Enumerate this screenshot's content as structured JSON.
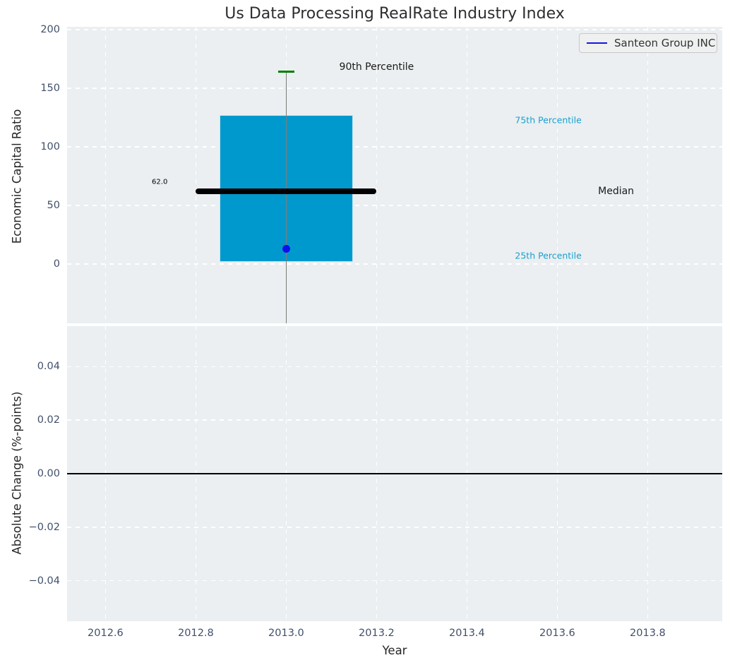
{
  "page": {
    "title": "Us Data Processing RealRate Industry Index"
  },
  "legend": {
    "label": "Santeon Group INC"
  },
  "colors": {
    "figure_bg": "#ffffff",
    "axes_bg": "#ebeff1",
    "grid": "#ffffff",
    "box_fill": "#0099cd",
    "box_edge": "#c9e2ef",
    "median_line": "#000000",
    "whisker": "#7d7d7d",
    "cap_90th": "#007d00",
    "company_point": "#0f0fee",
    "legend_line": "#1414e8",
    "percentile_label": "#189fd0",
    "tick_label": "#42506a",
    "axis_label": "#262626",
    "title": "#2e2e2e",
    "zero_line": "#000000"
  },
  "x_axis": {
    "label": "Year",
    "xlim": [
      2012.515,
      2013.965
    ],
    "xticks": [
      2012.6,
      2012.8,
      2013.0,
      2013.2,
      2013.4,
      2013.6,
      2013.8
    ]
  },
  "chart_data": [
    {
      "type": "boxplot",
      "subplot": "top",
      "title": "Us Data Processing RealRate Industry Index",
      "ylabel": "Economic Capital Ratio",
      "ylim": [
        -50.6,
        202.4
      ],
      "yticks": [
        0,
        50,
        100,
        150,
        200
      ],
      "grid": true,
      "legend_position": "upper right",
      "box": {
        "x": 2013.0,
        "box_width": 0.295,
        "median_width": 0.4,
        "cap_width": 0.036,
        "p90": 164,
        "q3": 127,
        "median": 62,
        "q1": 2,
        "p10_clipped_below_axis": true
      },
      "company_series": {
        "name": "Santeon Group INC",
        "points": [
          {
            "x": 2013.0,
            "y": 13
          }
        ]
      },
      "annotations": [
        {
          "text": "90th Percentile",
          "x": 2013.2,
          "y": 168,
          "color": "#1a1a1a",
          "size": 14
        },
        {
          "text": "62.0",
          "x": 2012.72,
          "y": 70,
          "color": "#000000",
          "size": 10
        },
        {
          "text": "75th Percentile",
          "x": 2013.58,
          "y": 123,
          "color": "#189fd0",
          "size": 12.5
        },
        {
          "text": "Median",
          "x": 2013.73,
          "y": 62,
          "color": "#1a1a1a",
          "size": 14
        },
        {
          "text": "25th Percentile",
          "x": 2013.58,
          "y": 7,
          "color": "#189fd0",
          "size": 12.5
        }
      ]
    },
    {
      "type": "line",
      "subplot": "bottom",
      "ylabel": "Absolute Change (%-points)",
      "ylim": [
        -0.0551,
        0.0551
      ],
      "yticks": [
        -0.04,
        -0.02,
        0.0,
        0.02,
        0.04
      ],
      "grid": true,
      "zero_line": true,
      "series": []
    }
  ]
}
